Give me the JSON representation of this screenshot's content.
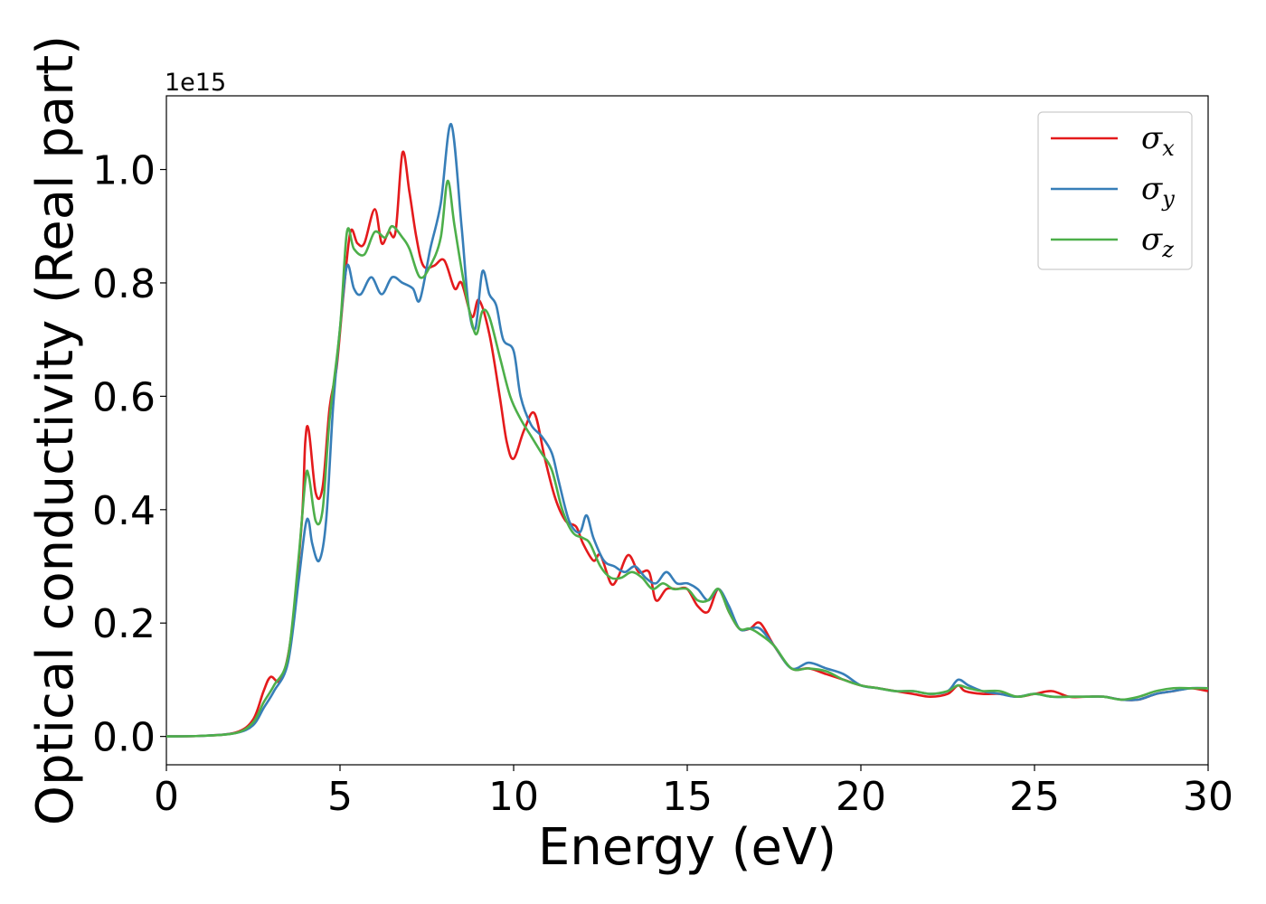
{
  "chart_data": {
    "type": "line",
    "xlabel": "Energy (eV)",
    "ylabel": "Optical conductivity (Real part)",
    "y_offset_label": "1e15",
    "xlim": [
      0,
      30
    ],
    "ylim": [
      -0.05,
      1.13
    ],
    "x_ticks": [
      0,
      5,
      10,
      15,
      20,
      25,
      30
    ],
    "x_tick_labels": [
      "0",
      "5",
      "10",
      "15",
      "20",
      "25",
      "30"
    ],
    "y_ticks": [
      0.0,
      0.2,
      0.4,
      0.6,
      0.8,
      1.0
    ],
    "y_tick_labels": [
      "0.0",
      "0.2",
      "0.4",
      "0.6",
      "0.8",
      "1.0"
    ],
    "grid": false,
    "legend_position": "top-right",
    "series": [
      {
        "name": "σx",
        "symbol": "σ",
        "subscript": "x",
        "color": "#e41a1c",
        "points": [
          [
            0,
            0
          ],
          [
            1,
            0.001
          ],
          [
            2,
            0.007
          ],
          [
            2.5,
            0.03
          ],
          [
            2.8,
            0.08
          ],
          [
            3.0,
            0.105
          ],
          [
            3.3,
            0.1
          ],
          [
            3.6,
            0.18
          ],
          [
            3.9,
            0.38
          ],
          [
            4.0,
            0.52
          ],
          [
            4.1,
            0.54
          ],
          [
            4.3,
            0.43
          ],
          [
            4.5,
            0.44
          ],
          [
            4.7,
            0.58
          ],
          [
            4.9,
            0.65
          ],
          [
            5.1,
            0.78
          ],
          [
            5.3,
            0.89
          ],
          [
            5.5,
            0.87
          ],
          [
            5.7,
            0.87
          ],
          [
            6.0,
            0.93
          ],
          [
            6.2,
            0.87
          ],
          [
            6.4,
            0.89
          ],
          [
            6.6,
            0.89
          ],
          [
            6.8,
            1.03
          ],
          [
            7.0,
            0.96
          ],
          [
            7.2,
            0.88
          ],
          [
            7.4,
            0.83
          ],
          [
            7.7,
            0.83
          ],
          [
            8.0,
            0.84
          ],
          [
            8.3,
            0.79
          ],
          [
            8.5,
            0.8
          ],
          [
            8.8,
            0.74
          ],
          [
            9.0,
            0.77
          ],
          [
            9.3,
            0.71
          ],
          [
            9.6,
            0.6
          ],
          [
            9.8,
            0.52
          ],
          [
            10.0,
            0.49
          ],
          [
            10.3,
            0.54
          ],
          [
            10.6,
            0.57
          ],
          [
            10.9,
            0.49
          ],
          [
            11.2,
            0.42
          ],
          [
            11.5,
            0.38
          ],
          [
            11.8,
            0.37
          ],
          [
            12.0,
            0.34
          ],
          [
            12.3,
            0.31
          ],
          [
            12.5,
            0.32
          ],
          [
            12.8,
            0.27
          ],
          [
            13.0,
            0.28
          ],
          [
            13.3,
            0.32
          ],
          [
            13.6,
            0.29
          ],
          [
            13.9,
            0.29
          ],
          [
            14.1,
            0.24
          ],
          [
            14.4,
            0.26
          ],
          [
            14.7,
            0.26
          ],
          [
            15.0,
            0.26
          ],
          [
            15.3,
            0.23
          ],
          [
            15.6,
            0.22
          ],
          [
            15.9,
            0.26
          ],
          [
            16.2,
            0.22
          ],
          [
            16.5,
            0.19
          ],
          [
            16.8,
            0.19
          ],
          [
            17.1,
            0.2
          ],
          [
            17.5,
            0.16
          ],
          [
            18,
            0.12
          ],
          [
            18.5,
            0.12
          ],
          [
            19,
            0.11
          ],
          [
            19.5,
            0.1
          ],
          [
            20,
            0.09
          ],
          [
            20.5,
            0.085
          ],
          [
            21,
            0.08
          ],
          [
            21.5,
            0.075
          ],
          [
            22,
            0.07
          ],
          [
            22.5,
            0.075
          ],
          [
            22.8,
            0.09
          ],
          [
            23,
            0.08
          ],
          [
            23.5,
            0.075
          ],
          [
            24,
            0.075
          ],
          [
            24.5,
            0.07
          ],
          [
            25,
            0.075
          ],
          [
            25.5,
            0.08
          ],
          [
            26,
            0.07
          ],
          [
            26.5,
            0.07
          ],
          [
            27,
            0.07
          ],
          [
            27.5,
            0.065
          ],
          [
            28,
            0.065
          ],
          [
            28.5,
            0.075
          ],
          [
            29,
            0.08
          ],
          [
            29.5,
            0.085
          ],
          [
            30,
            0.08
          ]
        ]
      },
      {
        "name": "σy",
        "symbol": "σ",
        "subscript": "y",
        "color": "#377eb8",
        "points": [
          [
            0,
            0
          ],
          [
            1,
            0.001
          ],
          [
            2,
            0.006
          ],
          [
            2.5,
            0.02
          ],
          [
            2.8,
            0.05
          ],
          [
            3.1,
            0.08
          ],
          [
            3.5,
            0.13
          ],
          [
            3.8,
            0.27
          ],
          [
            4.0,
            0.37
          ],
          [
            4.1,
            0.38
          ],
          [
            4.2,
            0.34
          ],
          [
            4.4,
            0.31
          ],
          [
            4.6,
            0.38
          ],
          [
            4.8,
            0.58
          ],
          [
            5.0,
            0.72
          ],
          [
            5.2,
            0.83
          ],
          [
            5.4,
            0.79
          ],
          [
            5.6,
            0.78
          ],
          [
            5.9,
            0.81
          ],
          [
            6.2,
            0.78
          ],
          [
            6.5,
            0.81
          ],
          [
            6.8,
            0.8
          ],
          [
            7.1,
            0.79
          ],
          [
            7.3,
            0.77
          ],
          [
            7.6,
            0.86
          ],
          [
            7.9,
            0.94
          ],
          [
            8.2,
            1.08
          ],
          [
            8.5,
            0.9
          ],
          [
            8.7,
            0.76
          ],
          [
            8.9,
            0.72
          ],
          [
            9.1,
            0.82
          ],
          [
            9.3,
            0.78
          ],
          [
            9.5,
            0.76
          ],
          [
            9.7,
            0.7
          ],
          [
            10.0,
            0.68
          ],
          [
            10.2,
            0.6
          ],
          [
            10.5,
            0.55
          ],
          [
            10.8,
            0.53
          ],
          [
            11.1,
            0.5
          ],
          [
            11.3,
            0.45
          ],
          [
            11.6,
            0.38
          ],
          [
            11.9,
            0.36
          ],
          [
            12.1,
            0.39
          ],
          [
            12.3,
            0.35
          ],
          [
            12.6,
            0.31
          ],
          [
            12.9,
            0.3
          ],
          [
            13.2,
            0.29
          ],
          [
            13.5,
            0.3
          ],
          [
            13.8,
            0.28
          ],
          [
            14.1,
            0.27
          ],
          [
            14.4,
            0.29
          ],
          [
            14.7,
            0.27
          ],
          [
            15.0,
            0.27
          ],
          [
            15.3,
            0.26
          ],
          [
            15.6,
            0.24
          ],
          [
            15.9,
            0.26
          ],
          [
            16.2,
            0.23
          ],
          [
            16.5,
            0.19
          ],
          [
            16.8,
            0.19
          ],
          [
            17.1,
            0.19
          ],
          [
            17.5,
            0.16
          ],
          [
            18,
            0.12
          ],
          [
            18.5,
            0.13
          ],
          [
            19,
            0.12
          ],
          [
            19.5,
            0.11
          ],
          [
            20,
            0.09
          ],
          [
            20.5,
            0.085
          ],
          [
            21,
            0.08
          ],
          [
            21.5,
            0.08
          ],
          [
            22,
            0.075
          ],
          [
            22.5,
            0.08
          ],
          [
            22.8,
            0.1
          ],
          [
            23.1,
            0.09
          ],
          [
            23.5,
            0.08
          ],
          [
            24,
            0.075
          ],
          [
            24.5,
            0.07
          ],
          [
            25,
            0.075
          ],
          [
            25.5,
            0.07
          ],
          [
            26,
            0.07
          ],
          [
            26.5,
            0.07
          ],
          [
            27,
            0.07
          ],
          [
            27.5,
            0.065
          ],
          [
            28,
            0.065
          ],
          [
            28.5,
            0.075
          ],
          [
            29,
            0.08
          ],
          [
            29.5,
            0.085
          ],
          [
            30,
            0.085
          ]
        ]
      },
      {
        "name": "σz",
        "symbol": "σ",
        "subscript": "z",
        "color": "#4daf4a",
        "points": [
          [
            0,
            0
          ],
          [
            1,
            0.001
          ],
          [
            2,
            0.006
          ],
          [
            2.5,
            0.025
          ],
          [
            2.8,
            0.06
          ],
          [
            3.1,
            0.09
          ],
          [
            3.5,
            0.14
          ],
          [
            3.8,
            0.31
          ],
          [
            4.0,
            0.45
          ],
          [
            4.1,
            0.46
          ],
          [
            4.3,
            0.38
          ],
          [
            4.5,
            0.4
          ],
          [
            4.7,
            0.56
          ],
          [
            5.0,
            0.72
          ],
          [
            5.2,
            0.89
          ],
          [
            5.4,
            0.86
          ],
          [
            5.7,
            0.85
          ],
          [
            6.0,
            0.89
          ],
          [
            6.3,
            0.88
          ],
          [
            6.5,
            0.9
          ],
          [
            6.8,
            0.88
          ],
          [
            7.0,
            0.86
          ],
          [
            7.3,
            0.81
          ],
          [
            7.6,
            0.83
          ],
          [
            7.9,
            0.88
          ],
          [
            8.1,
            0.98
          ],
          [
            8.3,
            0.9
          ],
          [
            8.6,
            0.79
          ],
          [
            8.9,
            0.71
          ],
          [
            9.1,
            0.75
          ],
          [
            9.3,
            0.74
          ],
          [
            9.6,
            0.67
          ],
          [
            9.9,
            0.6
          ],
          [
            10.2,
            0.56
          ],
          [
            10.5,
            0.53
          ],
          [
            10.8,
            0.5
          ],
          [
            11.1,
            0.47
          ],
          [
            11.4,
            0.4
          ],
          [
            11.7,
            0.36
          ],
          [
            12.0,
            0.35
          ],
          [
            12.2,
            0.34
          ],
          [
            12.5,
            0.3
          ],
          [
            12.8,
            0.28
          ],
          [
            13.1,
            0.28
          ],
          [
            13.4,
            0.29
          ],
          [
            13.7,
            0.28
          ],
          [
            14.0,
            0.26
          ],
          [
            14.3,
            0.27
          ],
          [
            14.6,
            0.26
          ],
          [
            15.0,
            0.26
          ],
          [
            15.3,
            0.24
          ],
          [
            15.6,
            0.24
          ],
          [
            15.9,
            0.26
          ],
          [
            16.2,
            0.22
          ],
          [
            16.5,
            0.19
          ],
          [
            16.8,
            0.19
          ],
          [
            17.1,
            0.18
          ],
          [
            17.5,
            0.16
          ],
          [
            18,
            0.12
          ],
          [
            18.5,
            0.12
          ],
          [
            19,
            0.115
          ],
          [
            19.5,
            0.1
          ],
          [
            20,
            0.09
          ],
          [
            20.5,
            0.085
          ],
          [
            21,
            0.08
          ],
          [
            21.5,
            0.08
          ],
          [
            22,
            0.075
          ],
          [
            22.5,
            0.08
          ],
          [
            22.8,
            0.09
          ],
          [
            23.1,
            0.085
          ],
          [
            23.5,
            0.08
          ],
          [
            24,
            0.08
          ],
          [
            24.5,
            0.07
          ],
          [
            25,
            0.075
          ],
          [
            25.5,
            0.07
          ],
          [
            26,
            0.07
          ],
          [
            26.5,
            0.07
          ],
          [
            27,
            0.07
          ],
          [
            27.5,
            0.065
          ],
          [
            28,
            0.07
          ],
          [
            28.5,
            0.08
          ],
          [
            29,
            0.085
          ],
          [
            29.5,
            0.085
          ],
          [
            30,
            0.085
          ]
        ]
      }
    ]
  }
}
